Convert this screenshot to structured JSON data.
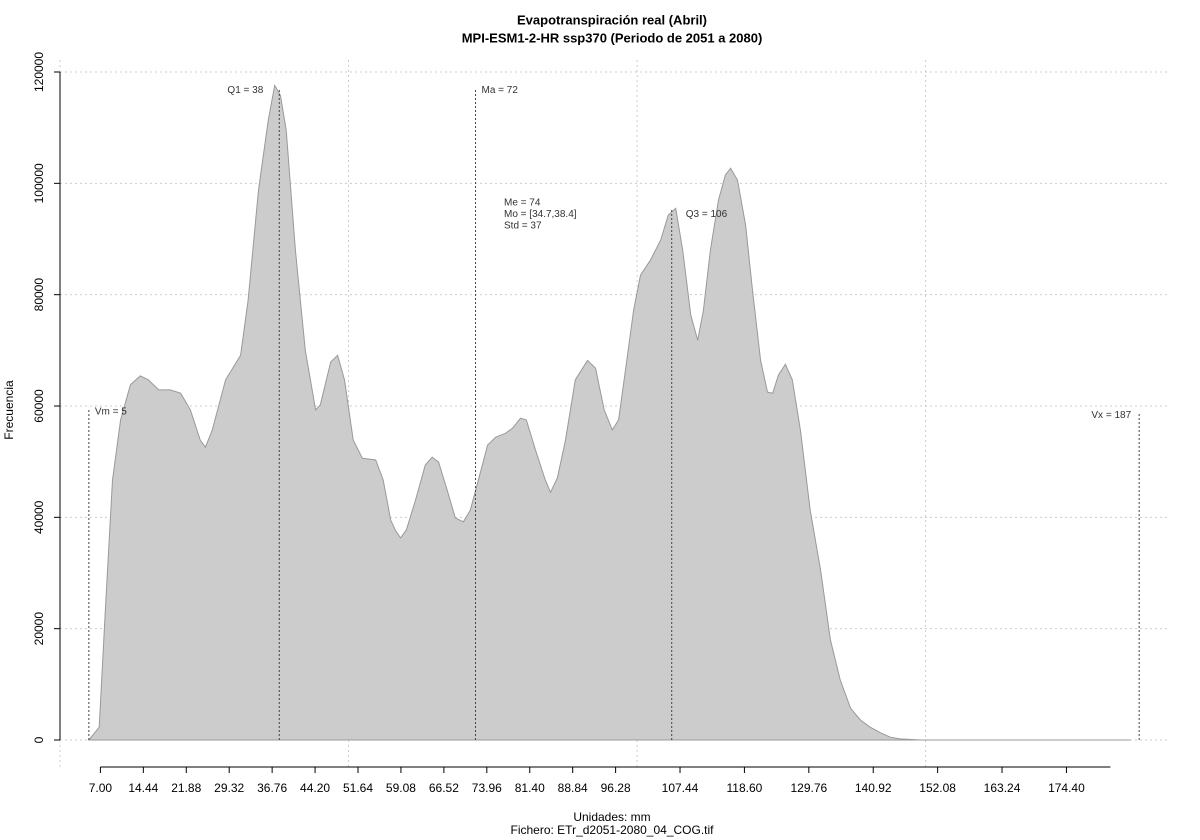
{
  "chart_data": {
    "type": "area",
    "title": "Evapotranspiración real (Abril)",
    "subtitle": "MPI-ESM1-2-HR ssp370 (Periodo de 2051 a 2080)",
    "x_label": "Unidades: mm",
    "y_label": "Frecuencia",
    "footer": "Fichero: ETr_d2051-2080_04_COG.tif",
    "color": "#cccccc",
    "line_color": "#999999",
    "grid": true,
    "xlim": [
      0,
      192
    ],
    "ylim": [
      0,
      120000
    ],
    "xgrid": [
      0,
      50,
      100,
      150
    ],
    "yticks": [
      0,
      20000,
      40000,
      60000,
      80000,
      100000,
      120000
    ],
    "xticks": [
      {
        "value": 7,
        "label": "7.00"
      },
      14.44,
      21.88,
      29.32,
      36.76,
      {
        "value": 44.2,
        "label": "44.20"
      },
      51.64,
      59.08,
      66.52,
      73.96,
      {
        "value": 81.4,
        "label": "81.40"
      },
      88.84,
      96.28,
      107.44,
      {
        "value": 118.6,
        "label": "118.60"
      },
      129.76,
      140.92,
      152.08,
      163.24,
      {
        "value": 174.4,
        "label": "174.40"
      }
    ],
    "x": [
      5,
      6.8,
      7.9,
      9.1,
      10.5,
      12.2,
      13.9,
      15.3,
      17.1,
      19.1,
      20.9,
      22.6,
      24.3,
      25.2,
      26.4,
      28.7,
      31.3,
      32.6,
      34.4,
      36.1,
      37.2,
      38.2,
      39.2,
      40.8,
      42.5,
      44.3,
      45.1,
      46.9,
      48.1,
      49.3,
      50.8,
      52.4,
      54.7,
      56,
      57.3,
      58.1,
      59,
      60,
      61.6,
      63.3,
      64.5,
      65.6,
      67.1,
      68.5,
      69.9,
      71.1,
      72.5,
      74.1,
      75.5,
      77.2,
      78.4,
      79.8,
      80.8,
      82.4,
      84.1,
      85,
      86.2,
      87.6,
      89.3,
      91.4,
      92.8,
      94.3,
      95.7,
      96.8,
      98,
      99.4,
      100.6,
      102.3,
      104.1,
      105.4,
      106.7,
      107.9,
      109.3,
      110.5,
      111.5,
      112.7,
      114.1,
      115.3,
      116.2,
      117.4,
      118.8,
      120,
      121.4,
      122.6,
      123.5,
      124.5,
      125.7,
      126.9,
      128.3,
      130,
      131.8,
      133.5,
      135.2,
      137,
      138.7,
      140.4,
      142.2,
      143.9,
      145.6,
      149.1,
      185.5
    ],
    "values": [
      0,
      2300,
      24200,
      46700,
      57500,
      63800,
      65400,
      64700,
      62900,
      62900,
      62300,
      59300,
      53900,
      52600,
      55700,
      64700,
      69100,
      79000,
      98800,
      111400,
      117600,
      115800,
      109600,
      88000,
      70000,
      59300,
      60200,
      67900,
      69100,
      64700,
      53900,
      50600,
      50300,
      46700,
      39500,
      37700,
      36300,
      37700,
      43100,
      49400,
      50800,
      49900,
      44900,
      39900,
      39200,
      41300,
      46700,
      53000,
      54400,
      55100,
      56000,
      57800,
      57500,
      52100,
      46700,
      44500,
      47100,
      53900,
      64700,
      68200,
      66800,
      59300,
      55700,
      57500,
      66500,
      77200,
      83500,
      86200,
      89800,
      94300,
      95500,
      88000,
      76300,
      71800,
      77200,
      88000,
      97000,
      101500,
      102700,
      100600,
      92500,
      80800,
      68200,
      62500,
      62300,
      65600,
      67500,
      64700,
      55700,
      41300,
      30500,
      18000,
      10800,
      5700,
      3600,
      2300,
      1300,
      500,
      200,
      0,
      0
    ],
    "annotations": [
      {
        "label": "Vm = 5",
        "x": 5,
        "y": 59300
      },
      {
        "label": "Q1 = 38",
        "x": 38,
        "y": 117100
      },
      {
        "label": "Ma = 72",
        "x": 72,
        "y": 117100
      },
      {
        "label": "Q3 = 106",
        "x": 106,
        "y": 95500
      },
      {
        "label": "Vx = 187",
        "x": 187,
        "y": 58700
      }
    ],
    "stats": [
      "Me = 74",
      "Mo = [34.7,38.4]",
      "Std = 37"
    ]
  }
}
